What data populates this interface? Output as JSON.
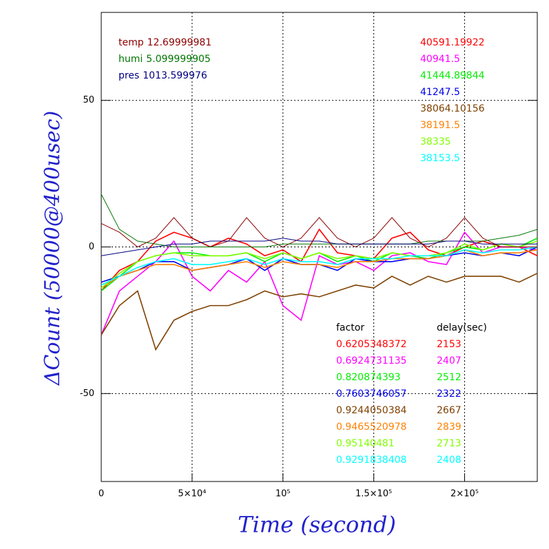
{
  "chart_data": {
    "type": "line",
    "xlabel": "Time (second)",
    "ylabel": "ΔCount (50000@400usec)",
    "xlim": [
      0,
      240000
    ],
    "xticks": [
      0,
      {
        "value": 50000,
        "label": "5×10⁴"
      },
      {
        "value": 100000,
        "label": "10⁵"
      },
      {
        "value": 150000,
        "label": "1.5×10⁵"
      },
      {
        "value": 200000,
        "label": "2×10⁵"
      }
    ],
    "ylim": [
      -80,
      80
    ],
    "yticks": [
      -50,
      0,
      50
    ],
    "grid": true,
    "x": [
      0,
      10000,
      20000,
      30000,
      40000,
      50000,
      60000,
      70000,
      80000,
      90000,
      100000,
      110000,
      120000,
      130000,
      140000,
      150000,
      160000,
      170000,
      180000,
      190000,
      200000,
      210000,
      220000,
      230000,
      240000
    ],
    "environment": [
      {
        "name": "temp",
        "value": 12.69999981,
        "color": "#8b0000",
        "values": [
          8,
          5,
          0,
          3,
          10,
          3,
          0,
          2,
          10,
          3,
          0,
          3,
          10,
          3,
          0,
          3,
          10,
          3,
          0,
          3,
          10,
          3,
          0,
          0,
          0
        ]
      },
      {
        "name": "humi",
        "value": 5.099999905,
        "color": "#007700",
        "values": [
          18,
          6,
          2,
          1,
          0,
          0,
          0,
          0,
          0,
          0,
          1,
          1,
          1,
          1,
          1,
          1,
          1,
          1,
          2,
          2,
          2,
          2,
          3,
          4,
          6
        ]
      },
      {
        "name": "pres",
        "value": 1013.599976,
        "color": "#000080",
        "values": [
          -3,
          -2,
          -1,
          0,
          1,
          1,
          2,
          2,
          2,
          2,
          3,
          2,
          2,
          1,
          1,
          1,
          1,
          1,
          1,
          2,
          2,
          1,
          1,
          1,
          1
        ]
      }
    ],
    "factor_header": "factor",
    "delay_header": "delay(sec)",
    "series": [
      {
        "label": 40591.19922,
        "factor": 0.6205348372,
        "delay": 2153,
        "color": "#ff0000",
        "values": [
          -15,
          -8,
          -5,
          2,
          5,
          3,
          0,
          3,
          1,
          -3,
          -1,
          -5,
          6,
          -2,
          -3,
          -4,
          3,
          5,
          -1,
          -3,
          0,
          2,
          0,
          0,
          -3
        ]
      },
      {
        "label": 40941.5,
        "factor": 0.6924731135,
        "delay": 2407,
        "color": "#ff00ff",
        "values": [
          -30,
          -15,
          -10,
          -5,
          2,
          -10,
          -15,
          -8,
          -12,
          -5,
          -20,
          -25,
          -3,
          -6,
          -5,
          -8,
          -3,
          -2,
          -5,
          -6,
          5,
          -2,
          0,
          0,
          -1
        ]
      },
      {
        "label": 41444.89844,
        "factor": 0.820874393,
        "delay": 2512,
        "color": "#00ee00",
        "values": [
          -15,
          -10,
          -5,
          -3,
          -2,
          -2,
          -3,
          -3,
          -2,
          -5,
          -2,
          -4,
          -2,
          -5,
          -3,
          -5,
          -2,
          -3,
          -4,
          -2,
          0,
          -1,
          1,
          0,
          3
        ]
      },
      {
        "label": 41247.5,
        "factor": 0.7603746057,
        "delay": 2322,
        "color": "#0000ee",
        "values": [
          -12,
          -10,
          -8,
          -5,
          -5,
          -8,
          -7,
          -6,
          -4,
          -8,
          -4,
          -6,
          -6,
          -8,
          -4,
          -5,
          -5,
          -4,
          -4,
          -3,
          -2,
          -3,
          -2,
          -3,
          0
        ]
      },
      {
        "label": 38064.10156,
        "factor": 0.9244050384,
        "delay": 2667,
        "color": "#7f4000",
        "values": [
          -30,
          -20,
          -15,
          -35,
          -25,
          -22,
          -20,
          -20,
          -18,
          -15,
          -17,
          -16,
          -17,
          -15,
          -13,
          -14,
          -10,
          -13,
          -10,
          -12,
          -10,
          -10,
          -10,
          -12,
          -9
        ]
      },
      {
        "label": 38191.5,
        "factor": 0.9465520978,
        "delay": 2839,
        "color": "#ff8000",
        "values": [
          -14,
          -10,
          -8,
          -6,
          -6,
          -8,
          -7,
          -6,
          -5,
          -7,
          -5,
          -6,
          -6,
          -7,
          -5,
          -5,
          -4,
          -4,
          -4,
          -3,
          -1,
          -3,
          -2,
          -2,
          -1
        ]
      },
      {
        "label": 38335,
        "factor": 0.95140481,
        "delay": 2713,
        "color": "#80ff00",
        "values": [
          -14,
          -9,
          -5,
          -3,
          -2,
          -3,
          -3,
          -3,
          -2,
          -4,
          -2,
          -4,
          -2,
          -4,
          -3,
          -4,
          -2,
          -3,
          -3,
          -2,
          1,
          -1,
          1,
          0,
          2
        ]
      },
      {
        "label": 38153.5,
        "factor": 0.9291838408,
        "delay": 2408,
        "color": "#00ffff",
        "values": [
          -13,
          -10,
          -7,
          -5,
          -4,
          -6,
          -6,
          -5,
          -4,
          -6,
          -4,
          -5,
          -5,
          -6,
          -4,
          -4,
          -4,
          -3,
          -3,
          -3,
          -1,
          -2,
          -1,
          -1,
          0
        ]
      }
    ]
  }
}
